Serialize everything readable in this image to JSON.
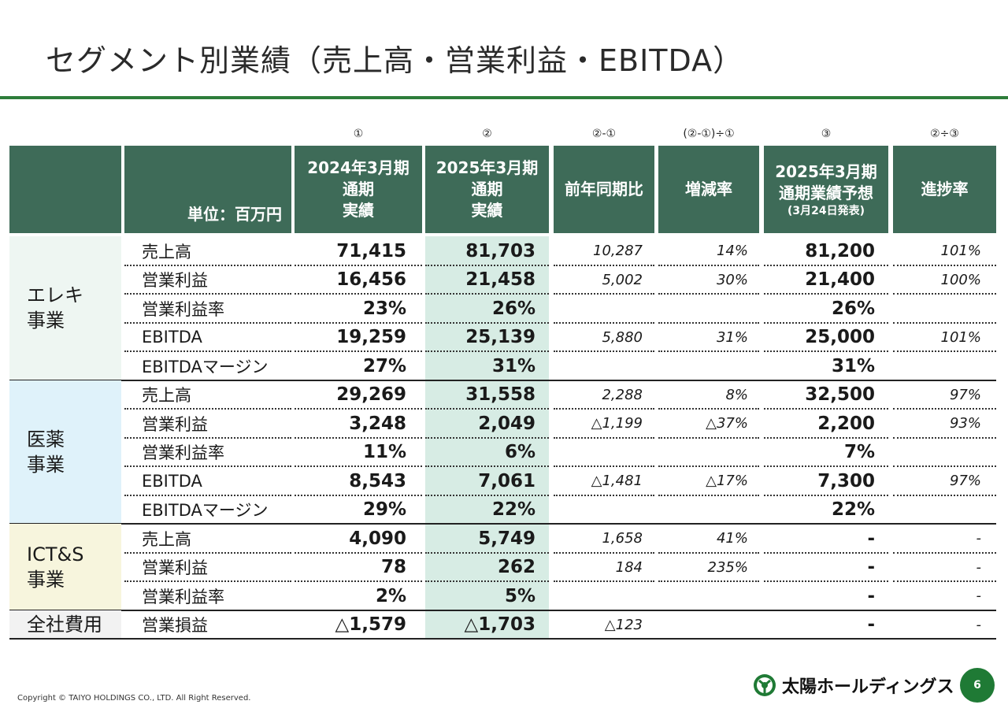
{
  "title": "セグメント別業績（売上高・営業利益・EBITDA）",
  "column_numbers": [
    "①",
    "②",
    "②-①",
    "(②-①)÷①",
    "③",
    "②÷③"
  ],
  "headers": {
    "unit": "単位：百万円",
    "fy2024": [
      "2024年3月期",
      "通期",
      "実績"
    ],
    "fy2025": [
      "2025年3月期",
      "通期",
      "実績"
    ],
    "yoy": "前年同期比",
    "rate": "増減率",
    "forecast": [
      "2025年3月期",
      "通期業績予想",
      "(3月24日発表)"
    ],
    "progress": "進捗率"
  },
  "segments": [
    {
      "name_lines": [
        "エレキ",
        "事業"
      ],
      "color": "#eef6f2",
      "rows": [
        {
          "label": "売上高",
          "fy2024": "71,415",
          "fy2025": "81,703",
          "yoy": "10,287",
          "rate": "14%",
          "forecast": "81,200",
          "progress": "101%"
        },
        {
          "label": "営業利益",
          "fy2024": "16,456",
          "fy2025": "21,458",
          "yoy": "5,002",
          "rate": "30%",
          "forecast": "21,400",
          "progress": "100%"
        },
        {
          "label": "営業利益率",
          "fy2024": "23%",
          "fy2025": "26%",
          "yoy": "",
          "rate": "",
          "forecast": "26%",
          "progress": ""
        },
        {
          "label": "EBITDA",
          "fy2024": "19,259",
          "fy2025": "25,139",
          "yoy": "5,880",
          "rate": "31%",
          "forecast": "25,000",
          "progress": "101%"
        },
        {
          "label": "EBITDAマージン",
          "fy2024": "27%",
          "fy2025": "31%",
          "yoy": "",
          "rate": "",
          "forecast": "31%",
          "progress": ""
        }
      ]
    },
    {
      "name_lines": [
        "医薬",
        "事業"
      ],
      "color": "#dff2fa",
      "rows": [
        {
          "label": "売上高",
          "fy2024": "29,269",
          "fy2025": "31,558",
          "yoy": "2,288",
          "rate": "8%",
          "forecast": "32,500",
          "progress": "97%"
        },
        {
          "label": "営業利益",
          "fy2024": "3,248",
          "fy2025": "2,049",
          "yoy": "△1,199",
          "rate": "△37%",
          "forecast": "2,200",
          "progress": "93%"
        },
        {
          "label": "営業利益率",
          "fy2024": "11%",
          "fy2025": "6%",
          "yoy": "",
          "rate": "",
          "forecast": "7%",
          "progress": ""
        },
        {
          "label": "EBITDA",
          "fy2024": "8,543",
          "fy2025": "7,061",
          "yoy": "△1,481",
          "rate": "△17%",
          "forecast": "7,300",
          "progress": "97%"
        },
        {
          "label": "EBITDAマージン",
          "fy2024": "29%",
          "fy2025": "22%",
          "yoy": "",
          "rate": "",
          "forecast": "22%",
          "progress": ""
        }
      ]
    },
    {
      "name_lines": [
        "ICT&S",
        "事業"
      ],
      "color": "#f7f5dd",
      "rows": [
        {
          "label": "売上高",
          "fy2024": "4,090",
          "fy2025": "5,749",
          "yoy": "1,658",
          "rate": "41%",
          "forecast": "-",
          "progress": "-"
        },
        {
          "label": "営業利益",
          "fy2024": "78",
          "fy2025": "262",
          "yoy": "184",
          "rate": "235%",
          "forecast": "-",
          "progress": "-"
        },
        {
          "label": "営業利益率",
          "fy2024": "2%",
          "fy2025": "5%",
          "yoy": "",
          "rate": "",
          "forecast": "-",
          "progress": "-"
        }
      ]
    },
    {
      "name_lines": [
        "全社費用"
      ],
      "color": "#f2f2f2",
      "rows": [
        {
          "label": "営業損益",
          "fy2024": "△1,579",
          "fy2025": "△1,703",
          "yoy": "△123",
          "rate": "",
          "forecast": "-",
          "progress": "-"
        }
      ]
    }
  ],
  "footer": {
    "copyright": "Copyright © TAIYO HOLDINGS CO., LTD.  All Right Reserved.",
    "logo_text": "太陽ホールディングス",
    "page_number": "6"
  },
  "colors": {
    "header_bg": "#3e6b58",
    "accent_rule": "#2e7d3a",
    "highlight_column": "#d7ece4",
    "page_badge": "#1f7a35"
  }
}
